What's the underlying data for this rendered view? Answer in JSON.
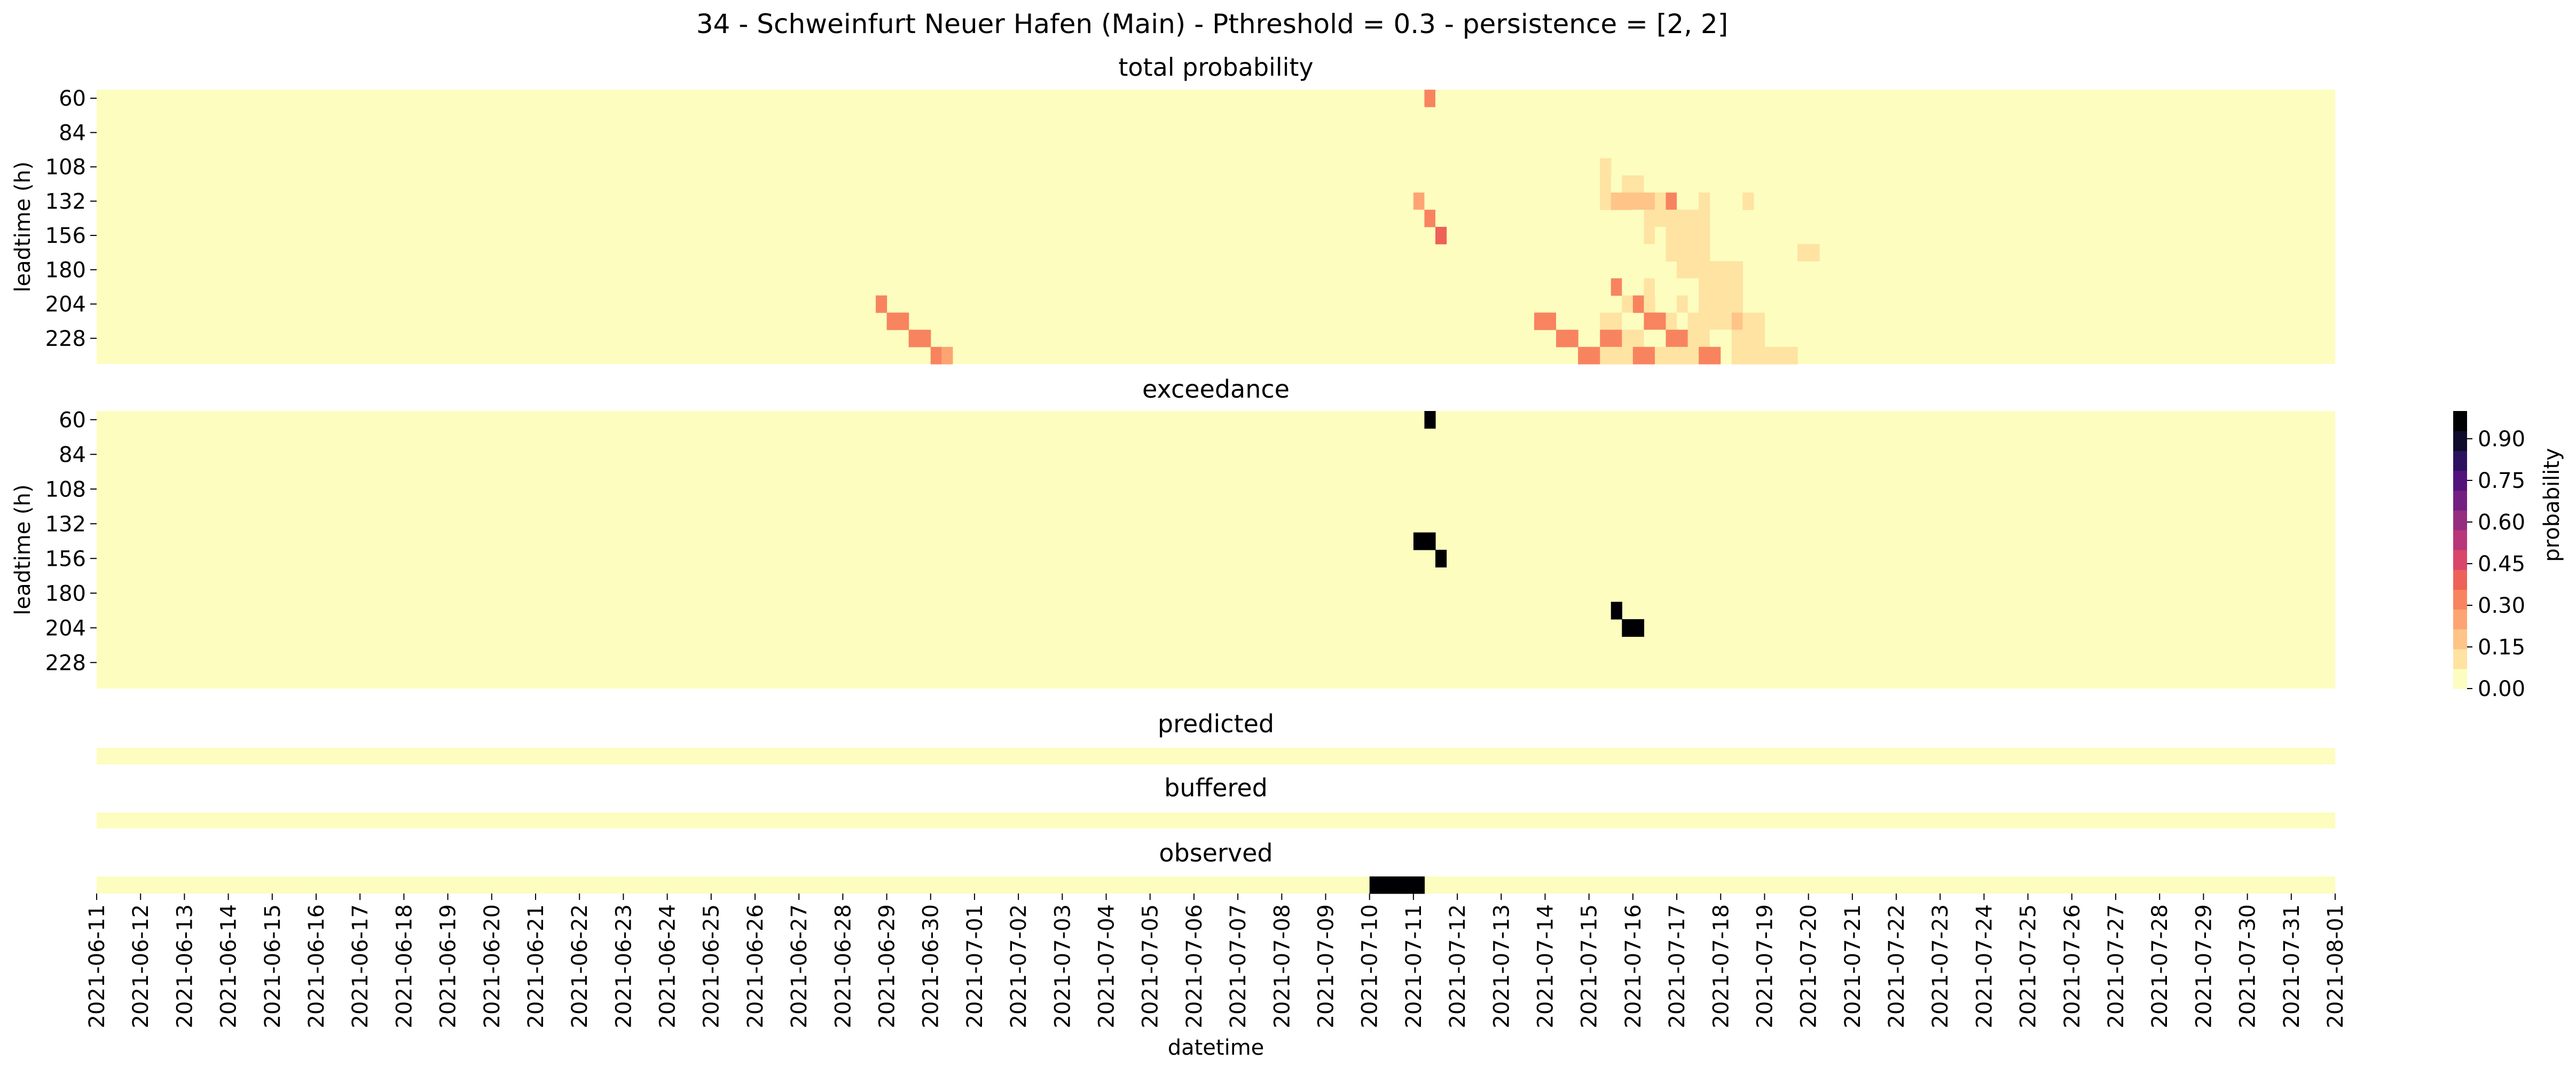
{
  "figure": {
    "title": "34 - Schweinfurt Neuer Hafen (Main) - Pthreshold = 0.3 - persistence = [2, 2]",
    "xlabel": "datetime",
    "ylabel": "leadtime (h)"
  },
  "colorbar": {
    "label": "probability",
    "ticks": [
      "0.00",
      "0.15",
      "0.30",
      "0.45",
      "0.60",
      "0.75",
      "0.90"
    ],
    "tick_values": [
      0.0,
      0.15,
      0.3,
      0.45,
      0.6,
      0.75,
      0.9
    ],
    "colors": [
      "#fcfdbf",
      "#fee3a2",
      "#fec488",
      "#fda572",
      "#f8845f",
      "#ee6158",
      "#d9466b",
      "#b73779",
      "#952c80",
      "#721f81",
      "#51127c",
      "#2c115f",
      "#0f0b2b",
      "#000004"
    ]
  },
  "chart_data": [
    {
      "type": "heatmap",
      "title": "total probability",
      "ylabel": "leadtime (h)",
      "yticks": [
        "60",
        "84",
        "108",
        "132",
        "156",
        "180",
        "204",
        "228"
      ],
      "xticks": [
        "2021-06-11",
        "2021-06-12",
        "2021-06-13",
        "2021-06-14",
        "2021-06-15",
        "2021-06-16",
        "2021-06-17",
        "2021-06-18",
        "2021-06-19",
        "2021-06-20",
        "2021-06-21",
        "2021-06-22",
        "2021-06-23",
        "2021-06-24",
        "2021-06-25",
        "2021-06-26",
        "2021-06-27",
        "2021-06-28",
        "2021-06-29",
        "2021-06-30",
        "2021-07-01",
        "2021-07-02",
        "2021-07-03",
        "2021-07-04",
        "2021-07-05",
        "2021-07-06",
        "2021-07-07",
        "2021-07-08",
        "2021-07-09",
        "2021-07-10",
        "2021-07-11",
        "2021-07-12",
        "2021-07-13",
        "2021-07-14",
        "2021-07-15",
        "2021-07-16",
        "2021-07-17",
        "2021-07-18",
        "2021-07-19",
        "2021-07-20",
        "2021-07-21",
        "2021-07-22",
        "2021-07-23",
        "2021-07-24",
        "2021-07-25",
        "2021-07-26",
        "2021-07-27",
        "2021-07-28",
        "2021-07-29",
        "2021-07-30",
        "2021-07-31",
        "2021-08-01"
      ],
      "x_range": [
        "2021-06-11 00:00",
        "2021-08-01 00:00"
      ],
      "time_step_hours": 6,
      "leadtime_range_h": [
        60,
        240
      ],
      "leadtime_step_h": 12,
      "background_value": 0.0,
      "cells": [
        {
          "t": "2021-07-11 06:00",
          "lt": 60,
          "p": 0.35
        },
        {
          "t": "2021-07-11 12:00",
          "lt": 60,
          "p": 0.05
        },
        {
          "t": "2021-07-10 18:00",
          "lt": 72,
          "p": 0.05
        },
        {
          "t": "2021-07-11 00:00",
          "lt": 72,
          "p": 0.05
        },
        {
          "t": "2021-07-11 00:00",
          "lt": 84,
          "p": 0.05
        },
        {
          "t": "2021-07-10 12:00",
          "lt": 96,
          "p": 0.05
        },
        {
          "t": "2021-07-10 06:00",
          "lt": 108,
          "p": 0.05
        },
        {
          "t": "2021-07-10 12:00",
          "lt": 108,
          "p": 0.05
        },
        {
          "t": "2021-07-10 18:00",
          "lt": 108,
          "p": 0.05
        },
        {
          "t": "2021-07-11 00:00",
          "lt": 108,
          "p": 0.05
        },
        {
          "t": "2021-07-10 18:00",
          "lt": 120,
          "p": 0.05
        },
        {
          "t": "2021-07-11 00:00",
          "lt": 120,
          "p": 0.05
        },
        {
          "t": "2021-07-10 18:00",
          "lt": 132,
          "p": 0.05
        },
        {
          "t": "2021-07-11 00:00",
          "lt": 132,
          "p": 0.25
        },
        {
          "t": "2021-07-11 06:00",
          "lt": 132,
          "p": 0.05
        },
        {
          "t": "2021-07-11 00:00",
          "lt": 144,
          "p": 0.05
        },
        {
          "t": "2021-07-11 06:00",
          "lt": 144,
          "p": 0.35
        },
        {
          "t": "2021-07-11 12:00",
          "lt": 144,
          "p": 0.05
        },
        {
          "t": "2021-07-11 12:00",
          "lt": 156,
          "p": 0.4
        },
        {
          "t": "2021-07-11 06:00",
          "lt": 192,
          "p": 0.05
        },
        {
          "t": "2021-06-28 18:00",
          "lt": 204,
          "p": 0.35
        },
        {
          "t": "2021-06-29 00:00",
          "lt": 216,
          "p": 0.3
        },
        {
          "t": "2021-06-29 06:00",
          "lt": 216,
          "p": 0.3
        },
        {
          "t": "2021-06-29 12:00",
          "lt": 228,
          "p": 0.3
        },
        {
          "t": "2021-06-29 18:00",
          "lt": 228,
          "p": 0.3
        },
        {
          "t": "2021-06-30 00:00",
          "lt": 240,
          "p": 0.3
        },
        {
          "t": "2021-06-30 06:00",
          "lt": 240,
          "p": 0.25
        },
        {
          "t": "2021-07-15 06:00",
          "lt": 108,
          "p": 0.1
        },
        {
          "t": "2021-07-15 06:00",
          "lt": 120,
          "p": 0.1
        },
        {
          "t": "2021-07-15 12:00",
          "lt": 120,
          "p": 0.05
        },
        {
          "t": "2021-07-15 18:00",
          "lt": 120,
          "p": 0.1
        },
        {
          "t": "2021-07-16 00:00",
          "lt": 120,
          "p": 0.1
        },
        {
          "t": "2021-07-16 06:00",
          "lt": 120,
          "p": 0.05
        },
        {
          "t": "2021-07-16 18:00",
          "lt": 120,
          "p": 0.05
        },
        {
          "t": "2021-07-15 06:00",
          "lt": 132,
          "p": 0.1
        },
        {
          "t": "2021-07-15 12:00",
          "lt": 132,
          "p": 0.15
        },
        {
          "t": "2021-07-15 18:00",
          "lt": 132,
          "p": 0.15
        },
        {
          "t": "2021-07-16 00:00",
          "lt": 132,
          "p": 0.15
        },
        {
          "t": "2021-07-16 06:00",
          "lt": 132,
          "p": 0.15
        },
        {
          "t": "2021-07-16 12:00",
          "lt": 132,
          "p": 0.1
        },
        {
          "t": "2021-07-16 18:00",
          "lt": 132,
          "p": 0.3
        },
        {
          "t": "2021-07-17 00:00",
          "lt": 132,
          "p": 0.05
        },
        {
          "t": "2021-07-17 12:00",
          "lt": 132,
          "p": 0.1
        },
        {
          "t": "2021-07-18 12:00",
          "lt": 132,
          "p": 0.1
        },
        {
          "t": "2021-07-16 00:00",
          "lt": 144,
          "p": 0.05
        },
        {
          "t": "2021-07-16 06:00",
          "lt": 144,
          "p": 0.1
        },
        {
          "t": "2021-07-16 12:00",
          "lt": 144,
          "p": 0.1
        },
        {
          "t": "2021-07-16 18:00",
          "lt": 144,
          "p": 0.1
        },
        {
          "t": "2021-07-17 00:00",
          "lt": 144,
          "p": 0.1
        },
        {
          "t": "2021-07-17 06:00",
          "lt": 144,
          "p": 0.1
        },
        {
          "t": "2021-07-17 12:00",
          "lt": 144,
          "p": 0.1
        },
        {
          "t": "2021-07-15 06:00",
          "lt": 156,
          "p": 0.05
        },
        {
          "t": "2021-07-16 00:00",
          "lt": 156,
          "p": 0.05
        },
        {
          "t": "2021-07-16 06:00",
          "lt": 156,
          "p": 0.1
        },
        {
          "t": "2021-07-16 12:00",
          "lt": 156,
          "p": 0.05
        },
        {
          "t": "2021-07-16 18:00",
          "lt": 156,
          "p": 0.1
        },
        {
          "t": "2021-07-17 00:00",
          "lt": 156,
          "p": 0.1
        },
        {
          "t": "2021-07-17 06:00",
          "lt": 156,
          "p": 0.1
        },
        {
          "t": "2021-07-17 12:00",
          "lt": 156,
          "p": 0.1
        },
        {
          "t": "2021-07-16 00:00",
          "lt": 168,
          "p": 0.05
        },
        {
          "t": "2021-07-16 06:00",
          "lt": 168,
          "p": 0.05
        },
        {
          "t": "2021-07-16 18:00",
          "lt": 168,
          "p": 0.1
        },
        {
          "t": "2021-07-17 00:00",
          "lt": 168,
          "p": 0.1
        },
        {
          "t": "2021-07-17 06:00",
          "lt": 168,
          "p": 0.1
        },
        {
          "t": "2021-07-17 12:00",
          "lt": 168,
          "p": 0.1
        },
        {
          "t": "2021-07-19 18:00",
          "lt": 168,
          "p": 0.1
        },
        {
          "t": "2021-07-20 00:00",
          "lt": 168,
          "p": 0.1
        },
        {
          "t": "2021-07-16 06:00",
          "lt": 180,
          "p": 0.05
        },
        {
          "t": "2021-07-17 00:00",
          "lt": 180,
          "p": 0.1
        },
        {
          "t": "2021-07-17 06:00",
          "lt": 180,
          "p": 0.1
        },
        {
          "t": "2021-07-17 12:00",
          "lt": 180,
          "p": 0.1
        },
        {
          "t": "2021-07-17 18:00",
          "lt": 180,
          "p": 0.1
        },
        {
          "t": "2021-07-18 00:00",
          "lt": 180,
          "p": 0.1
        },
        {
          "t": "2021-07-18 06:00",
          "lt": 180,
          "p": 0.1
        },
        {
          "t": "2021-07-15 12:00",
          "lt": 192,
          "p": 0.35
        },
        {
          "t": "2021-07-15 18:00",
          "lt": 192,
          "p": 0.05
        },
        {
          "t": "2021-07-16 06:00",
          "lt": 192,
          "p": 0.1
        },
        {
          "t": "2021-07-16 12:00",
          "lt": 192,
          "p": 0.05
        },
        {
          "t": "2021-07-17 00:00",
          "lt": 192,
          "p": 0.05
        },
        {
          "t": "2021-07-17 06:00",
          "lt": 192,
          "p": 0.05
        },
        {
          "t": "2021-07-17 12:00",
          "lt": 192,
          "p": 0.1
        },
        {
          "t": "2021-07-17 18:00",
          "lt": 192,
          "p": 0.1
        },
        {
          "t": "2021-07-18 00:00",
          "lt": 192,
          "p": 0.1
        },
        {
          "t": "2021-07-18 06:00",
          "lt": 192,
          "p": 0.1
        },
        {
          "t": "2021-07-15 00:00",
          "lt": 204,
          "p": 0.05
        },
        {
          "t": "2021-07-15 06:00",
          "lt": 204,
          "p": 0.05
        },
        {
          "t": "2021-07-15 18:00",
          "lt": 204,
          "p": 0.1
        },
        {
          "t": "2021-07-16 00:00",
          "lt": 204,
          "p": 0.35
        },
        {
          "t": "2021-07-16 06:00",
          "lt": 204,
          "p": 0.1
        },
        {
          "t": "2021-07-16 18:00",
          "lt": 204,
          "p": 0.05
        },
        {
          "t": "2021-07-17 00:00",
          "lt": 204,
          "p": 0.1
        },
        {
          "t": "2021-07-17 06:00",
          "lt": 204,
          "p": 0.05
        },
        {
          "t": "2021-07-17 12:00",
          "lt": 204,
          "p": 0.1
        },
        {
          "t": "2021-07-17 18:00",
          "lt": 204,
          "p": 0.1
        },
        {
          "t": "2021-07-18 00:00",
          "lt": 204,
          "p": 0.1
        },
        {
          "t": "2021-07-18 06:00",
          "lt": 204,
          "p": 0.1
        },
        {
          "t": "2021-07-13 18:00",
          "lt": 216,
          "p": 0.3
        },
        {
          "t": "2021-07-14 00:00",
          "lt": 216,
          "p": 0.3
        },
        {
          "t": "2021-07-14 06:00",
          "lt": 216,
          "p": 0.05
        },
        {
          "t": "2021-07-15 06:00",
          "lt": 216,
          "p": 0.1
        },
        {
          "t": "2021-07-15 12:00",
          "lt": 216,
          "p": 0.1
        },
        {
          "t": "2021-07-15 18:00",
          "lt": 216,
          "p": 0.05
        },
        {
          "t": "2021-07-16 06:00",
          "lt": 216,
          "p": 0.3
        },
        {
          "t": "2021-07-16 12:00",
          "lt": 216,
          "p": 0.3
        },
        {
          "t": "2021-07-16 18:00",
          "lt": 216,
          "p": 0.1
        },
        {
          "t": "2021-07-17 00:00",
          "lt": 216,
          "p": 0.05
        },
        {
          "t": "2021-07-17 06:00",
          "lt": 216,
          "p": 0.1
        },
        {
          "t": "2021-07-17 12:00",
          "lt": 216,
          "p": 0.1
        },
        {
          "t": "2021-07-17 18:00",
          "lt": 216,
          "p": 0.1
        },
        {
          "t": "2021-07-18 00:00",
          "lt": 216,
          "p": 0.1
        },
        {
          "t": "2021-07-18 06:00",
          "lt": 216,
          "p": 0.15
        },
        {
          "t": "2021-07-18 12:00",
          "lt": 216,
          "p": 0.1
        },
        {
          "t": "2021-07-18 18:00",
          "lt": 216,
          "p": 0.1
        },
        {
          "t": "2021-07-14 06:00",
          "lt": 228,
          "p": 0.3
        },
        {
          "t": "2021-07-14 12:00",
          "lt": 228,
          "p": 0.3
        },
        {
          "t": "2021-07-15 06:00",
          "lt": 228,
          "p": 0.3
        },
        {
          "t": "2021-07-15 12:00",
          "lt": 228,
          "p": 0.3
        },
        {
          "t": "2021-07-15 18:00",
          "lt": 228,
          "p": 0.1
        },
        {
          "t": "2021-07-16 00:00",
          "lt": 228,
          "p": 0.1
        },
        {
          "t": "2021-07-16 06:00",
          "lt": 228,
          "p": 0.05
        },
        {
          "t": "2021-07-16 12:00",
          "lt": 228,
          "p": 0.05
        },
        {
          "t": "2021-07-16 18:00",
          "lt": 228,
          "p": 0.3
        },
        {
          "t": "2021-07-17 00:00",
          "lt": 228,
          "p": 0.3
        },
        {
          "t": "2021-07-17 06:00",
          "lt": 228,
          "p": 0.1
        },
        {
          "t": "2021-07-17 12:00",
          "lt": 228,
          "p": 0.1
        },
        {
          "t": "2021-07-17 18:00",
          "lt": 228,
          "p": 0.05
        },
        {
          "t": "2021-07-18 00:00",
          "lt": 228,
          "p": 0.05
        },
        {
          "t": "2021-07-18 06:00",
          "lt": 228,
          "p": 0.1
        },
        {
          "t": "2021-07-18 12:00",
          "lt": 228,
          "p": 0.1
        },
        {
          "t": "2021-07-18 18:00",
          "lt": 228,
          "p": 0.1
        },
        {
          "t": "2021-07-14 18:00",
          "lt": 240,
          "p": 0.3
        },
        {
          "t": "2021-07-15 00:00",
          "lt": 240,
          "p": 0.3
        },
        {
          "t": "2021-07-15 06:00",
          "lt": 240,
          "p": 0.1
        },
        {
          "t": "2021-07-15 12:00",
          "lt": 240,
          "p": 0.1
        },
        {
          "t": "2021-07-15 18:00",
          "lt": 240,
          "p": 0.1
        },
        {
          "t": "2021-07-16 00:00",
          "lt": 240,
          "p": 0.3
        },
        {
          "t": "2021-07-16 06:00",
          "lt": 240,
          "p": 0.3
        },
        {
          "t": "2021-07-16 12:00",
          "lt": 240,
          "p": 0.1
        },
        {
          "t": "2021-07-16 18:00",
          "lt": 240,
          "p": 0.1
        },
        {
          "t": "2021-07-17 00:00",
          "lt": 240,
          "p": 0.1
        },
        {
          "t": "2021-07-17 06:00",
          "lt": 240,
          "p": 0.1
        },
        {
          "t": "2021-07-17 12:00",
          "lt": 240,
          "p": 0.3
        },
        {
          "t": "2021-07-17 18:00",
          "lt": 240,
          "p": 0.3
        },
        {
          "t": "2021-07-18 00:00",
          "lt": 240,
          "p": 0.05
        },
        {
          "t": "2021-07-18 06:00",
          "lt": 240,
          "p": 0.1
        },
        {
          "t": "2021-07-18 12:00",
          "lt": 240,
          "p": 0.1
        },
        {
          "t": "2021-07-18 18:00",
          "lt": 240,
          "p": 0.1
        },
        {
          "t": "2021-07-19 00:00",
          "lt": 240,
          "p": 0.1
        },
        {
          "t": "2021-07-19 06:00",
          "lt": 240,
          "p": 0.1
        },
        {
          "t": "2021-07-19 12:00",
          "lt": 240,
          "p": 0.1
        }
      ]
    },
    {
      "type": "heatmap",
      "title": "exceedance",
      "ylabel": "leadtime (h)",
      "yticks": [
        "60",
        "84",
        "108",
        "132",
        "156",
        "180",
        "204",
        "228"
      ],
      "leadtime_range_h": [
        60,
        240
      ],
      "leadtime_step_h": 12,
      "background_value": 0.0,
      "cells": [
        {
          "t": "2021-07-11 06:00",
          "lt": 60,
          "p": 1
        },
        {
          "t": "2021-07-11 00:00",
          "lt": 144,
          "p": 1
        },
        {
          "t": "2021-07-11 06:00",
          "lt": 144,
          "p": 1
        },
        {
          "t": "2021-07-11 12:00",
          "lt": 156,
          "p": 1
        },
        {
          "t": "2021-07-15 12:00",
          "lt": 192,
          "p": 1
        },
        {
          "t": "2021-07-15 18:00",
          "lt": 204,
          "p": 1
        },
        {
          "t": "2021-07-16 00:00",
          "lt": 204,
          "p": 1
        }
      ]
    },
    {
      "type": "heatmap",
      "title": "predicted",
      "background_value": 0.0,
      "cells": []
    },
    {
      "type": "heatmap",
      "title": "buffered",
      "background_value": 0.0,
      "cells": []
    },
    {
      "type": "heatmap",
      "title": "observed",
      "background_value": 0.0,
      "cells": [
        {
          "t": "2021-07-10 00:00",
          "p": 1
        },
        {
          "t": "2021-07-10 06:00",
          "p": 1
        },
        {
          "t": "2021-07-10 12:00",
          "p": 1
        },
        {
          "t": "2021-07-10 18:00",
          "p": 1
        },
        {
          "t": "2021-07-11 00:00",
          "p": 1
        }
      ]
    }
  ]
}
